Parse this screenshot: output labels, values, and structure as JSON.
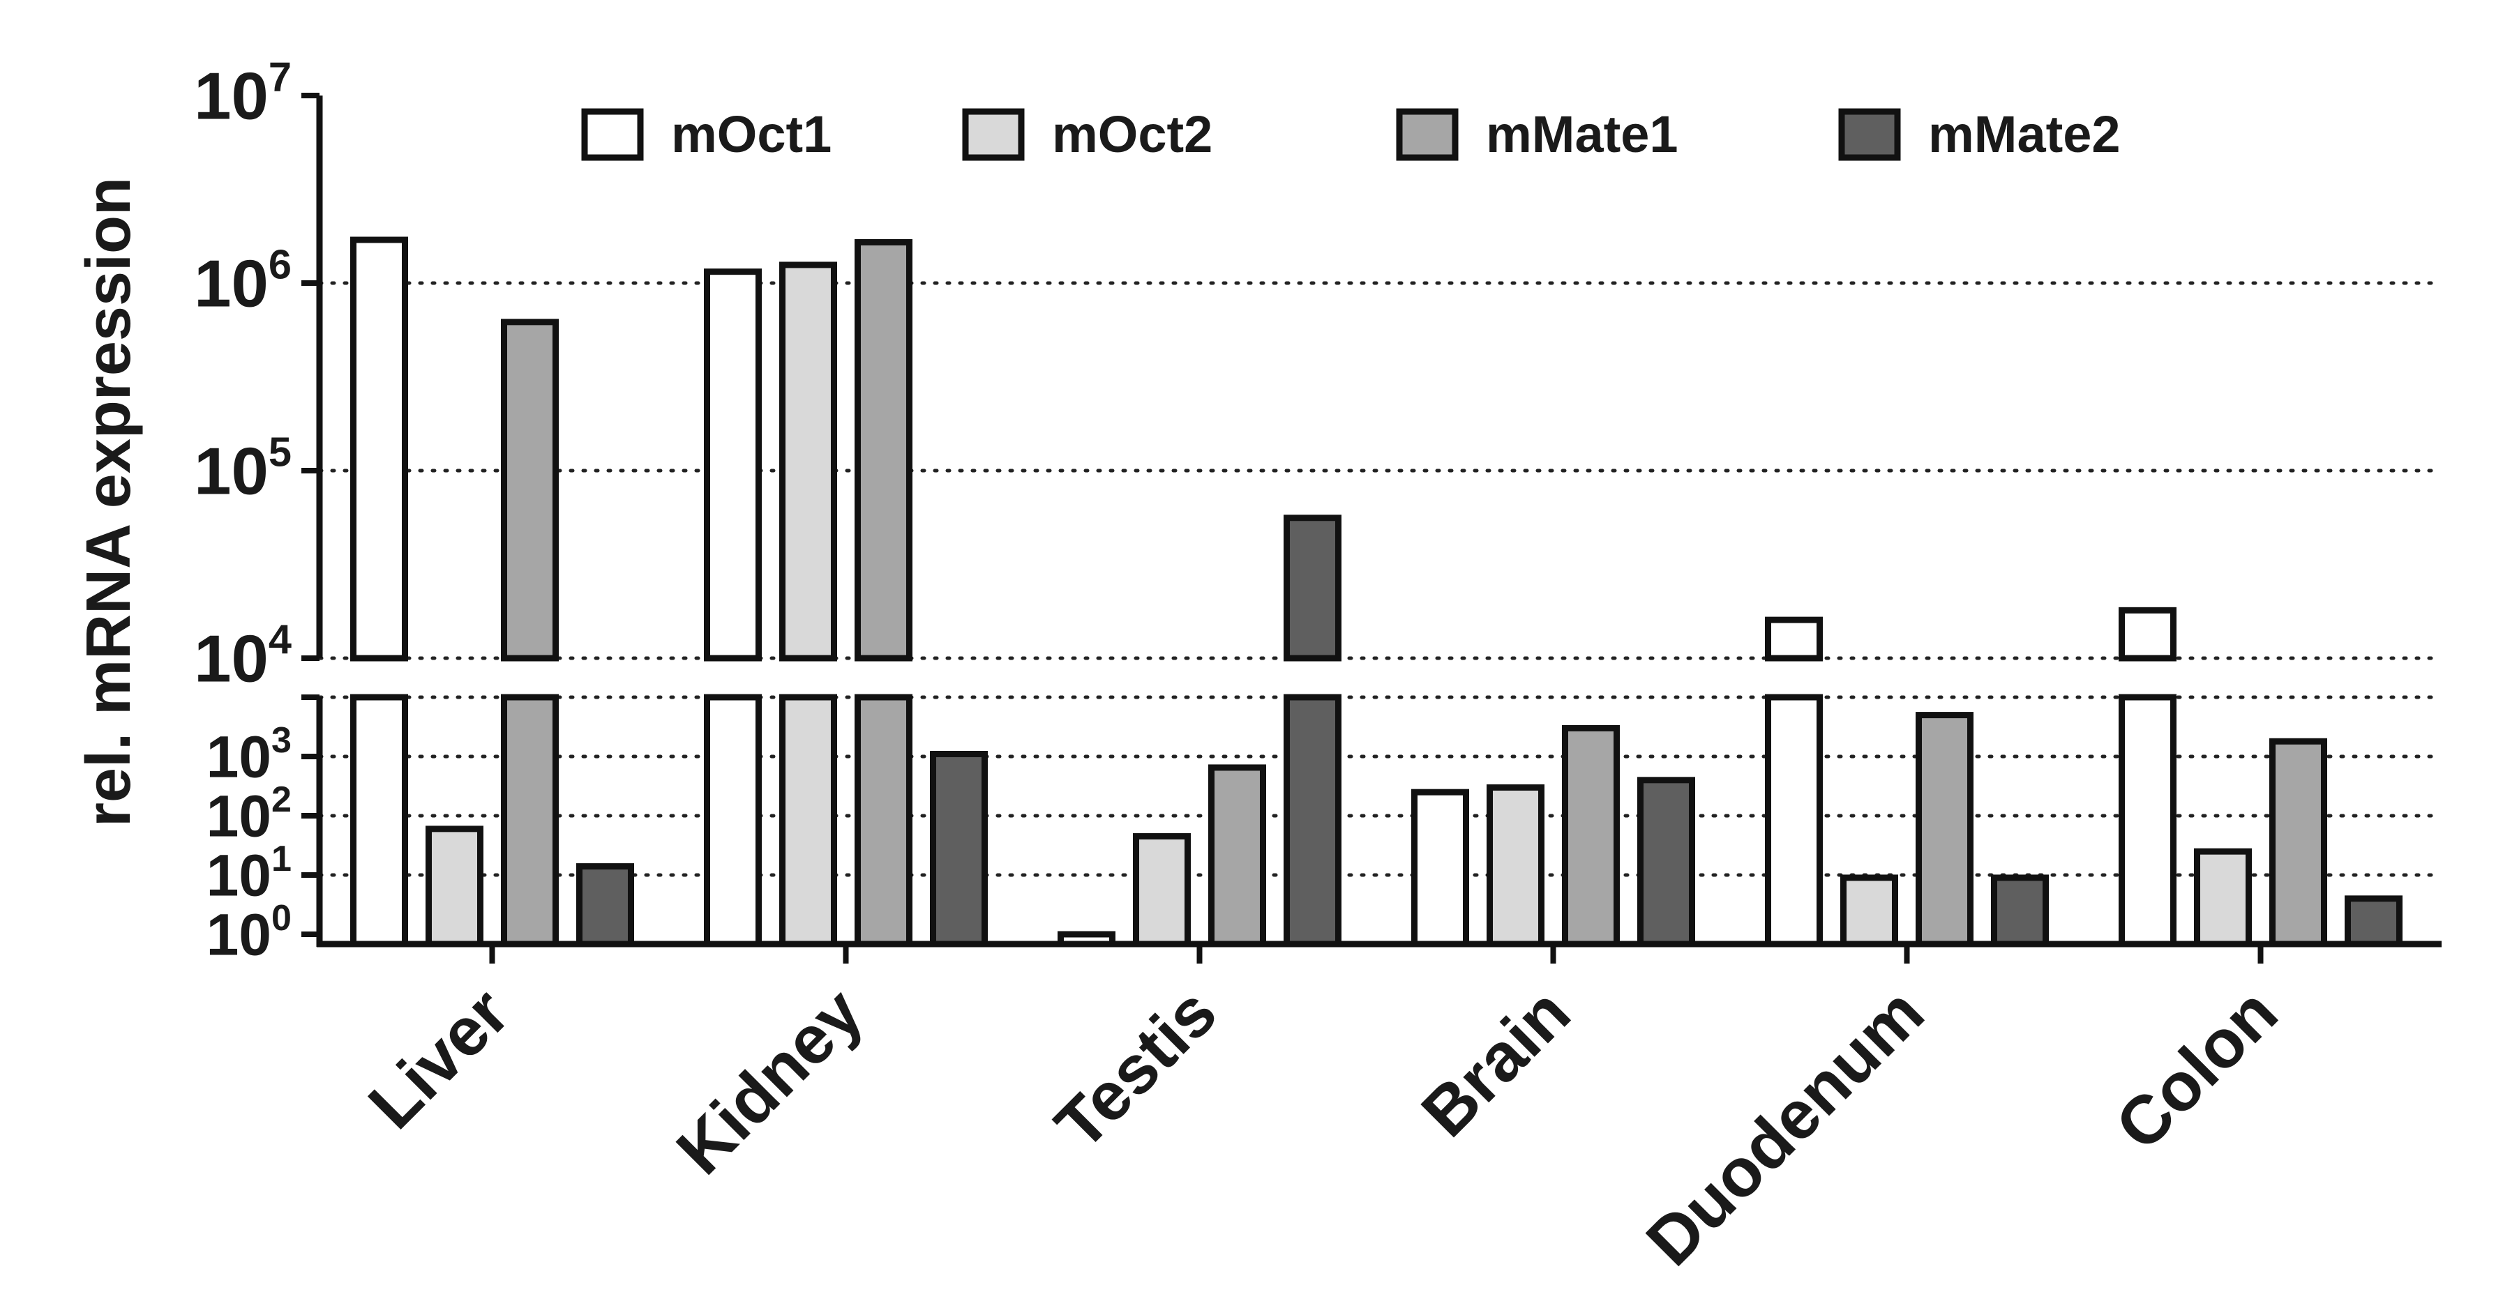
{
  "chart_data": {
    "type": "bar",
    "title": "",
    "xlabel": "",
    "ylabel": "rel. mRNA expression",
    "y_scale": "log10 with broken axis",
    "ylim": [
      1,
      10000000
    ],
    "axis_break": 10000,
    "yticks": [
      {
        "base": "10",
        "exp": "0",
        "value": 1
      },
      {
        "base": "10",
        "exp": "1",
        "value": 10
      },
      {
        "base": "10",
        "exp": "2",
        "value": 100
      },
      {
        "base": "10",
        "exp": "3",
        "value": 1000
      },
      {
        "base": "10",
        "exp": "4",
        "value": 10000
      },
      {
        "base": "10",
        "exp": "5",
        "value": 100000
      },
      {
        "base": "10",
        "exp": "6",
        "value": 1000000
      },
      {
        "base": "10",
        "exp": "7",
        "value": 10000000
      }
    ],
    "gridlines": [
      10,
      100,
      1000,
      10000,
      100000,
      1000000
    ],
    "categories": [
      "Liver",
      "Kidney",
      "Testis",
      "Brain",
      "Duodenum",
      "Colon"
    ],
    "series": [
      {
        "name": "mOct1",
        "color": "#ffffff",
        "values": [
          1700000,
          1150000,
          1,
          250,
          16000,
          18000
        ]
      },
      {
        "name": "mOct2",
        "color": "#d9d9d9",
        "values": [
          60,
          1250000,
          45,
          300,
          9,
          25
        ]
      },
      {
        "name": "mMate1",
        "color": "#a6a6a6",
        "values": [
          620000,
          1650000,
          650,
          3000,
          5000,
          1800
        ]
      },
      {
        "name": "mMate2",
        "color": "#5f5f5f",
        "values": [
          14,
          1100,
          56000,
          400,
          9,
          4
        ]
      }
    ],
    "legend_position": "top"
  }
}
